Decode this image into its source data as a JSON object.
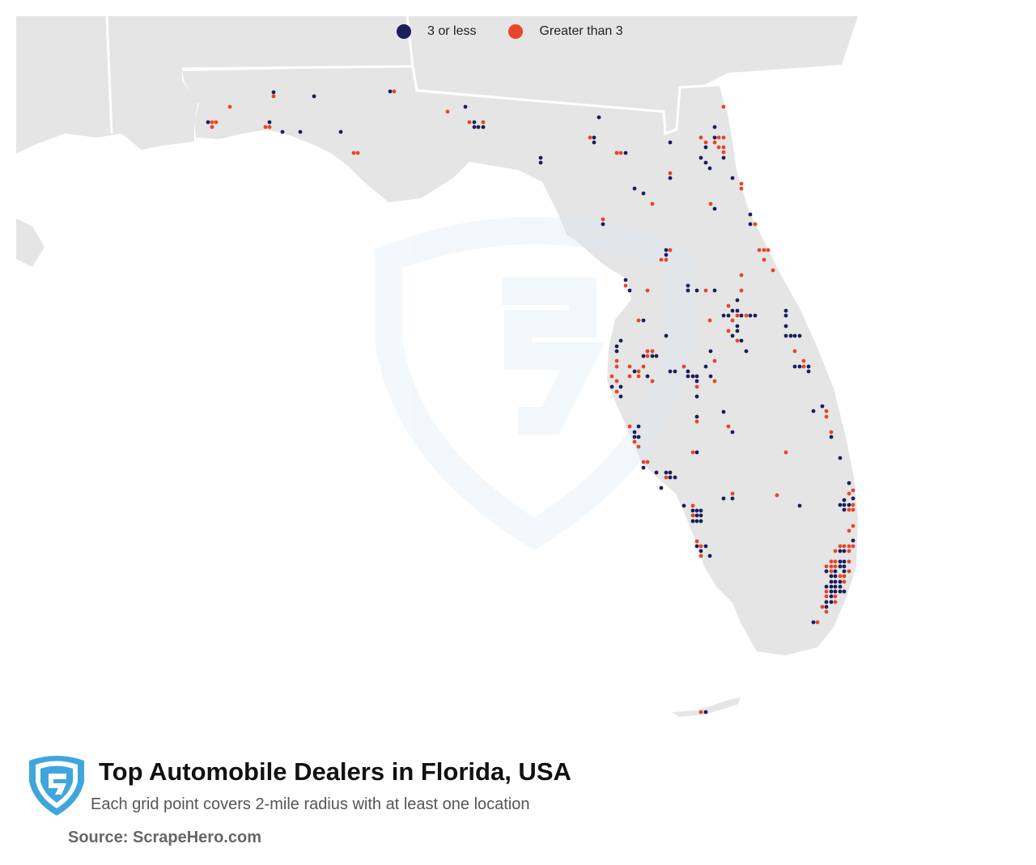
{
  "legend": {
    "items": [
      {
        "label": "3 or less",
        "color": "#1b1f5c"
      },
      {
        "label": "Greater than 3",
        "color": "#e8452a"
      }
    ]
  },
  "title": "Top Automobile Dealers in Florida, USA",
  "subtitle": "Each grid point covers 2-mile radius with at least one location",
  "source": "Source: ScrapeHero.com",
  "colors": {
    "land": "#e5e5e5",
    "water": "#ffffff",
    "border": "#ffffff",
    "dark": "#1b1f5c",
    "orange": "#e8452a",
    "brand": "#3fa6dd"
  },
  "icons": [
    "scrapehero-shield-logo"
  ]
}
